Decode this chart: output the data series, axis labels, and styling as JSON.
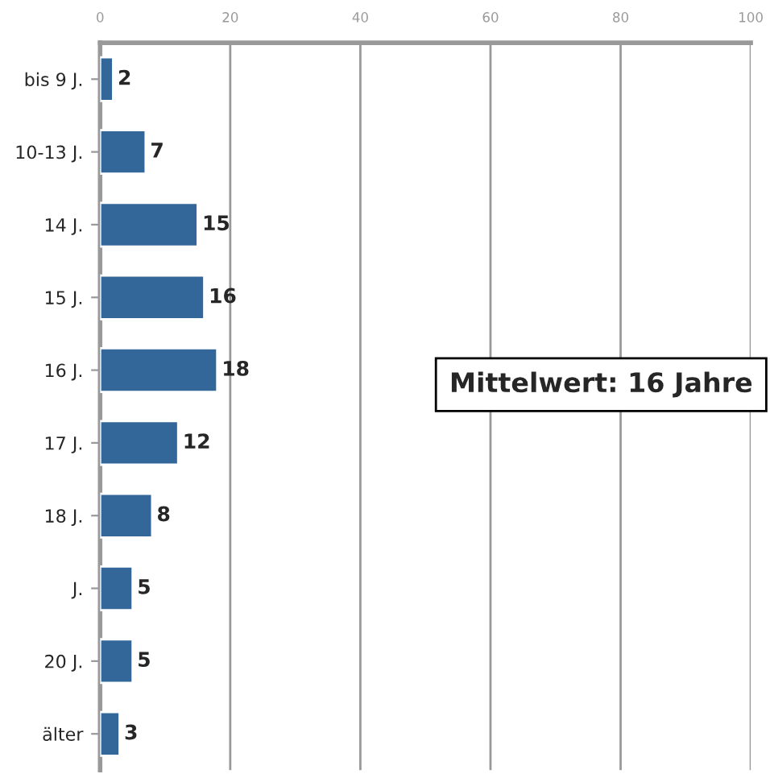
{
  "chart_data": {
    "type": "bar",
    "orientation": "horizontal",
    "categories": [
      "bis 9 J.",
      "10-13 J.",
      "14 J.",
      "15 J.",
      "16 J.",
      "17 J.",
      "18 J.",
      "J.",
      "20 J.",
      "älter"
    ],
    "values": [
      2,
      7,
      15,
      16,
      18,
      12,
      8,
      5,
      5,
      3
    ],
    "color": "#336699",
    "xlim": [
      0,
      100
    ],
    "xticks": [
      0,
      20,
      40,
      60,
      80,
      100
    ],
    "grid": "x",
    "data_labels": true,
    "annotations": [
      "Mittelwert: 16 Jahre"
    ]
  }
}
